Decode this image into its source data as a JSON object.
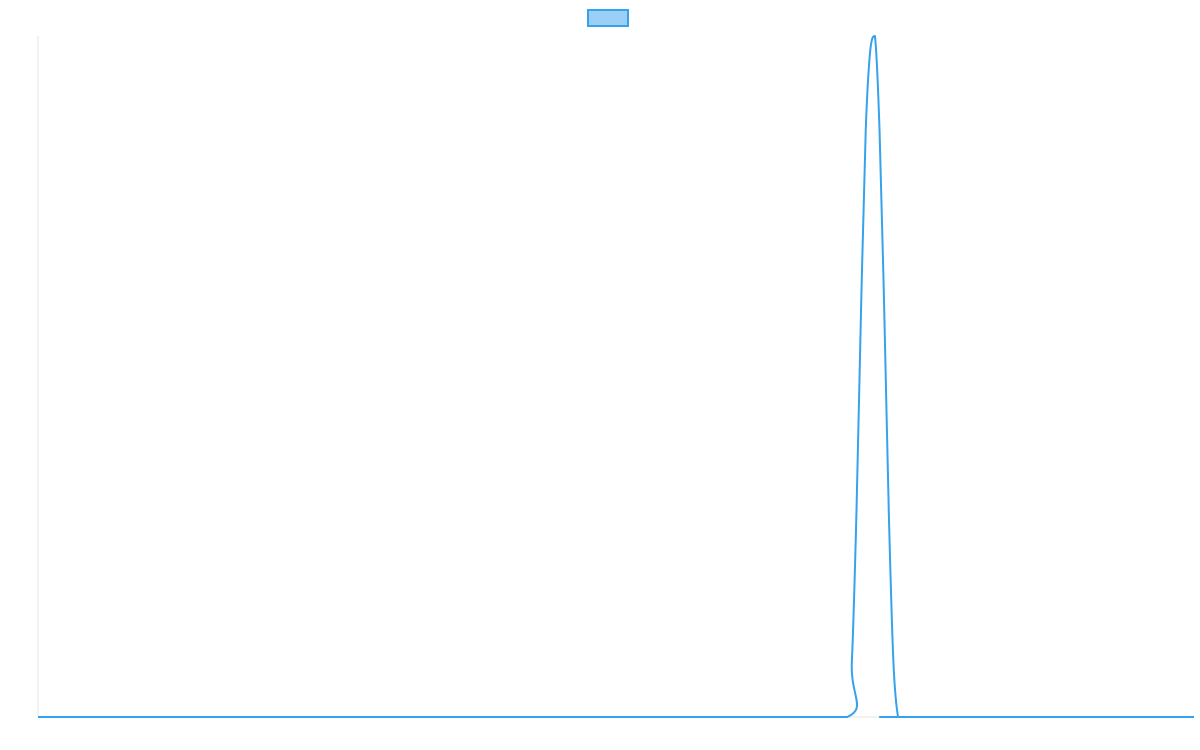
{
  "chart_data": {
    "type": "line",
    "title": "",
    "xlabel": "",
    "ylabel": "",
    "grid": false,
    "legend": {
      "placement": "top-center",
      "entries": [
        {
          "name": "",
          "color": "#36a2eb",
          "fill": "#9ad0f5"
        }
      ]
    },
    "xlim": [
      0,
      1000
    ],
    "ylim": [
      0,
      1
    ],
    "series": [
      {
        "name": "",
        "color": "#36a2eb",
        "x": [
          0,
          100,
          200,
          300,
          400,
          500,
          600,
          700,
          704,
          708,
          712,
          716,
          720,
          724,
          728,
          732,
          736,
          740,
          744,
          748,
          1000
        ],
        "y": [
          0,
          0,
          0,
          0,
          0,
          0,
          0,
          0,
          0.08,
          0.3,
          0.6,
          0.86,
          0.98,
          1.0,
          0.86,
          0.6,
          0.3,
          0.08,
          0.0,
          0,
          0
        ]
      }
    ]
  }
}
